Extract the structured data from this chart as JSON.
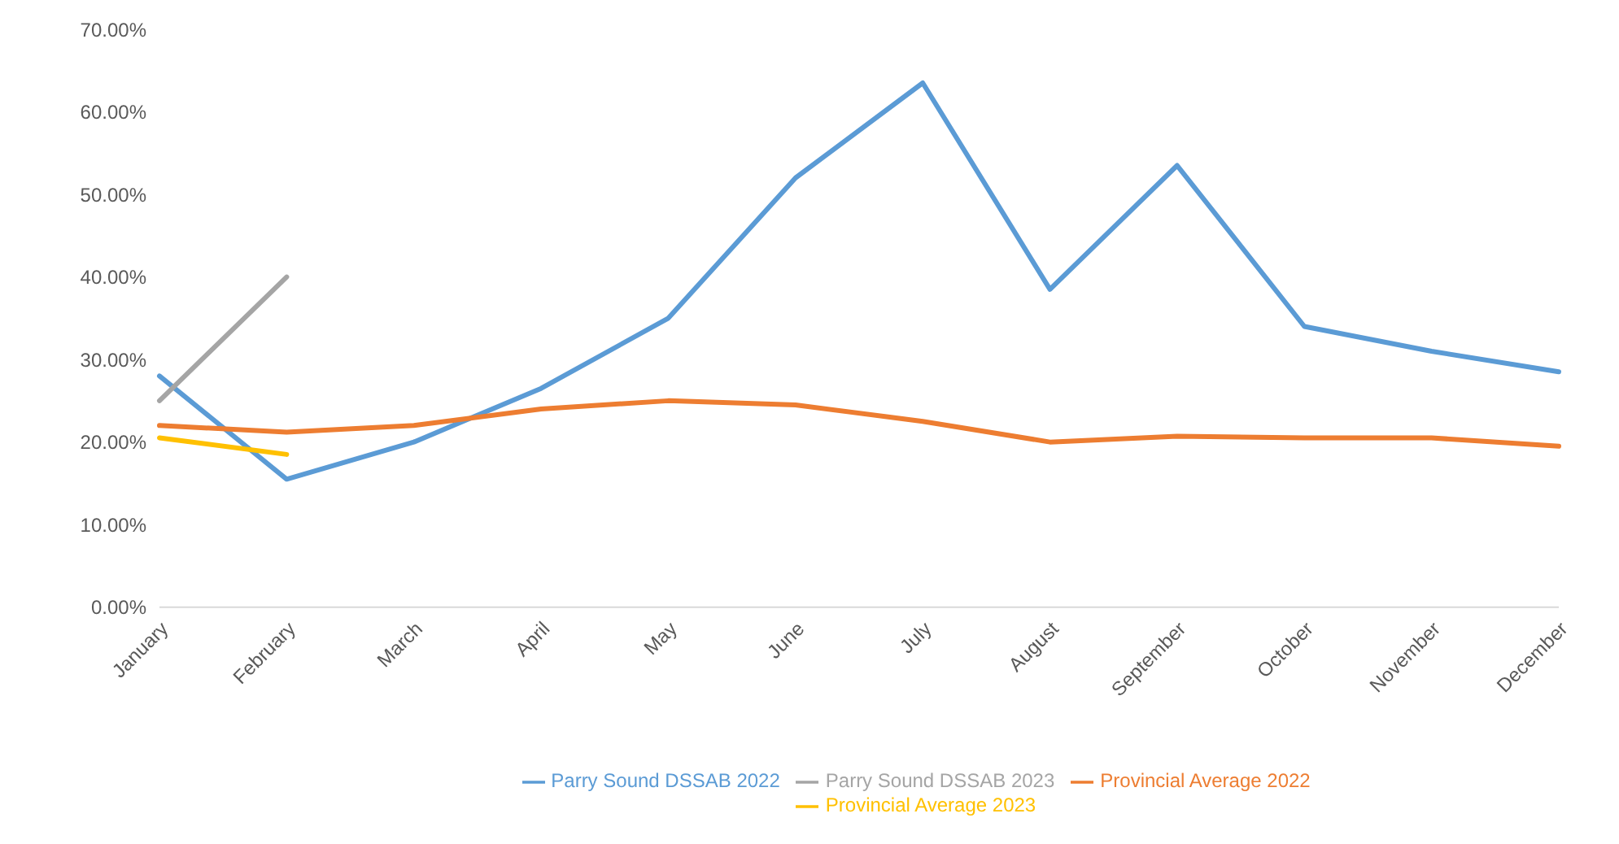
{
  "chart_data": {
    "type": "line",
    "categories": [
      "January",
      "February",
      "March",
      "April",
      "May",
      "June",
      "July",
      "August",
      "September",
      "October",
      "November",
      "December"
    ],
    "ylim": [
      0,
      70
    ],
    "yticks": [
      {
        "value": 0,
        "label": "0.00%"
      },
      {
        "value": 10,
        "label": "10.00%"
      },
      {
        "value": 20,
        "label": "20.00%"
      },
      {
        "value": 30,
        "label": "30.00%"
      },
      {
        "value": 40,
        "label": "40.00%"
      },
      {
        "value": 50,
        "label": "50.00%"
      },
      {
        "value": 60,
        "label": "60.00%"
      },
      {
        "value": 70,
        "label": "70.00%"
      }
    ],
    "grid": false,
    "legend": "bottom",
    "marker": "none",
    "line_style": "solid",
    "series": [
      {
        "name": "Parry Sound DSSAB 2022",
        "color": "#5b9bd5",
        "values": [
          28,
          15.5,
          20,
          26.5,
          35,
          52,
          63.5,
          38.5,
          53.5,
          34,
          31,
          28.5
        ]
      },
      {
        "name": "Provincial Average 2022",
        "color": "#ed7d31",
        "values": [
          22,
          21.2,
          22,
          24,
          25,
          24.5,
          22.5,
          20,
          20.7,
          20.5,
          20.5,
          19.5
        ]
      },
      {
        "name": "Parry Sound DSSAB 2023",
        "color": "#a5a5a5",
        "values": [
          25,
          40,
          null,
          null,
          null,
          null,
          null,
          null,
          null,
          null,
          null,
          null
        ]
      },
      {
        "name": "Provincial Average 2023",
        "color": "#ffc000",
        "values": [
          20.5,
          18.5,
          null,
          null,
          null,
          null,
          null,
          null,
          null,
          null,
          null,
          null
        ]
      }
    ]
  }
}
